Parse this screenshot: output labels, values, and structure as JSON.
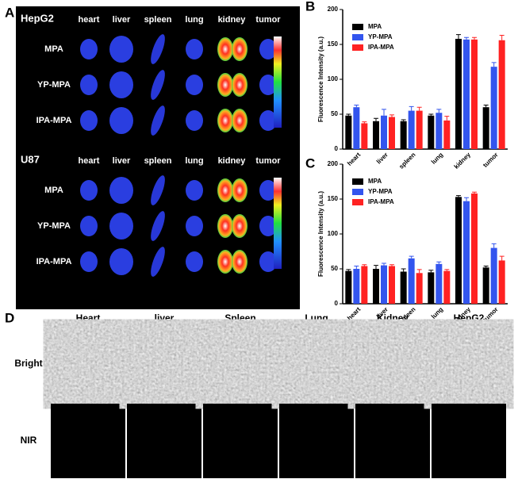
{
  "panel_labels": [
    "A",
    "B",
    "C",
    "D"
  ],
  "panel_a": {
    "groups": [
      {
        "name": "HepG2",
        "columns": [
          "heart",
          "liver",
          "spleen",
          "lung",
          "kidney",
          "tumor"
        ],
        "rows": [
          "MPA",
          "YP-MPA",
          "IPA-MPA"
        ]
      },
      {
        "name": "U87",
        "columns": [
          "heart",
          "liver",
          "spleen",
          "lung",
          "kidney",
          "tumor"
        ],
        "rows": [
          "MPA",
          "YP-MPA",
          "IPA-MPA"
        ]
      }
    ]
  },
  "chart_data": [
    {
      "type": "bar",
      "ylabel": "Fluorescence Intensity (a.u.)",
      "categories": [
        "heart",
        "liver",
        "spleen",
        "lung",
        "kidney",
        "tumor"
      ],
      "series": [
        {
          "name": "MPA",
          "color": "#000000",
          "values": [
            48,
            40,
            40,
            48,
            158,
            60
          ],
          "errors": [
            2,
            4,
            2,
            2,
            6,
            3
          ]
        },
        {
          "name": "YP-MPA",
          "color": "#3355ee",
          "values": [
            60,
            48,
            55,
            52,
            157,
            118
          ],
          "errors": [
            3,
            9,
            6,
            5,
            3,
            6
          ]
        },
        {
          "name": "IPA-MPA",
          "color": "#ff2222",
          "values": [
            37,
            46,
            55,
            41,
            157,
            156
          ],
          "errors": [
            2,
            3,
            5,
            6,
            3,
            7
          ]
        }
      ],
      "ylim": [
        0,
        200
      ],
      "yticks": [
        0,
        50,
        100,
        150,
        200
      ]
    },
    {
      "type": "bar",
      "ylabel": "Fluorescence Intensity (a.u.)",
      "categories": [
        "heart",
        "liver",
        "spleen",
        "lung",
        "kidney",
        "tumor"
      ],
      "series": [
        {
          "name": "MPA",
          "color": "#000000",
          "values": [
            47,
            50,
            46,
            45,
            153,
            52
          ],
          "errors": [
            2,
            5,
            4,
            3,
            2,
            2
          ]
        },
        {
          "name": "YP-MPA",
          "color": "#3355ee",
          "values": [
            50,
            55,
            65,
            57,
            147,
            80
          ],
          "errors": [
            4,
            3,
            3,
            3,
            5,
            6
          ]
        },
        {
          "name": "IPA-MPA",
          "color": "#ff2222",
          "values": [
            54,
            54,
            44,
            47,
            158,
            62
          ],
          "errors": [
            2,
            2,
            5,
            2,
            2,
            6
          ]
        }
      ],
      "ylim": [
        0,
        200
      ],
      "yticks": [
        0,
        50,
        100,
        150,
        200
      ]
    }
  ],
  "panel_d": {
    "columns": [
      "Heart",
      "liver",
      "Spleen",
      "Lung",
      "Kidney",
      "HepG2"
    ],
    "rows": [
      "Bright",
      "NIR"
    ]
  }
}
